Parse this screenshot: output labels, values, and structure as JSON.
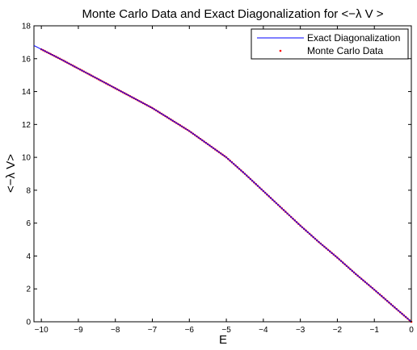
{
  "chart_data": {
    "type": "line",
    "title": "Monte Carlo Data and Exact Diagonalization for <−λ V >",
    "xlabel": "E",
    "ylabel": "<−λ V>",
    "xlim": [
      -10.2,
      0
    ],
    "ylim": [
      0,
      18
    ],
    "xticks": [
      -10,
      -9,
      -8,
      -7,
      -6,
      -5,
      -4,
      -3,
      -2,
      -1,
      0
    ],
    "yticks": [
      0,
      2,
      4,
      6,
      8,
      10,
      12,
      14,
      16,
      18
    ],
    "grid": false,
    "legend_position": "top-right",
    "series": [
      {
        "name": "Exact Diagonalization",
        "style": "line",
        "color": "#0000ff",
        "x": [
          -10.2,
          -9.5,
          -9.0,
          -8.5,
          -8.0,
          -7.5,
          -7.0,
          -6.5,
          -6.0,
          -5.5,
          -5.0,
          -4.5,
          -4.0,
          -3.5,
          -3.0,
          -2.5,
          -2.0,
          -1.5,
          -1.0,
          -0.5,
          0.0
        ],
        "y": [
          16.8,
          16.0,
          15.4,
          14.8,
          14.2,
          13.6,
          13.0,
          12.3,
          11.6,
          10.8,
          10.0,
          9.0,
          7.95,
          6.9,
          5.85,
          4.85,
          3.9,
          2.9,
          1.95,
          0.97,
          0.0
        ]
      },
      {
        "name": "Monte Carlo Data",
        "style": "points",
        "color": "#ff0000",
        "x_start": -10.0,
        "x_end": 0.0,
        "x_step": 0.05
      }
    ]
  }
}
